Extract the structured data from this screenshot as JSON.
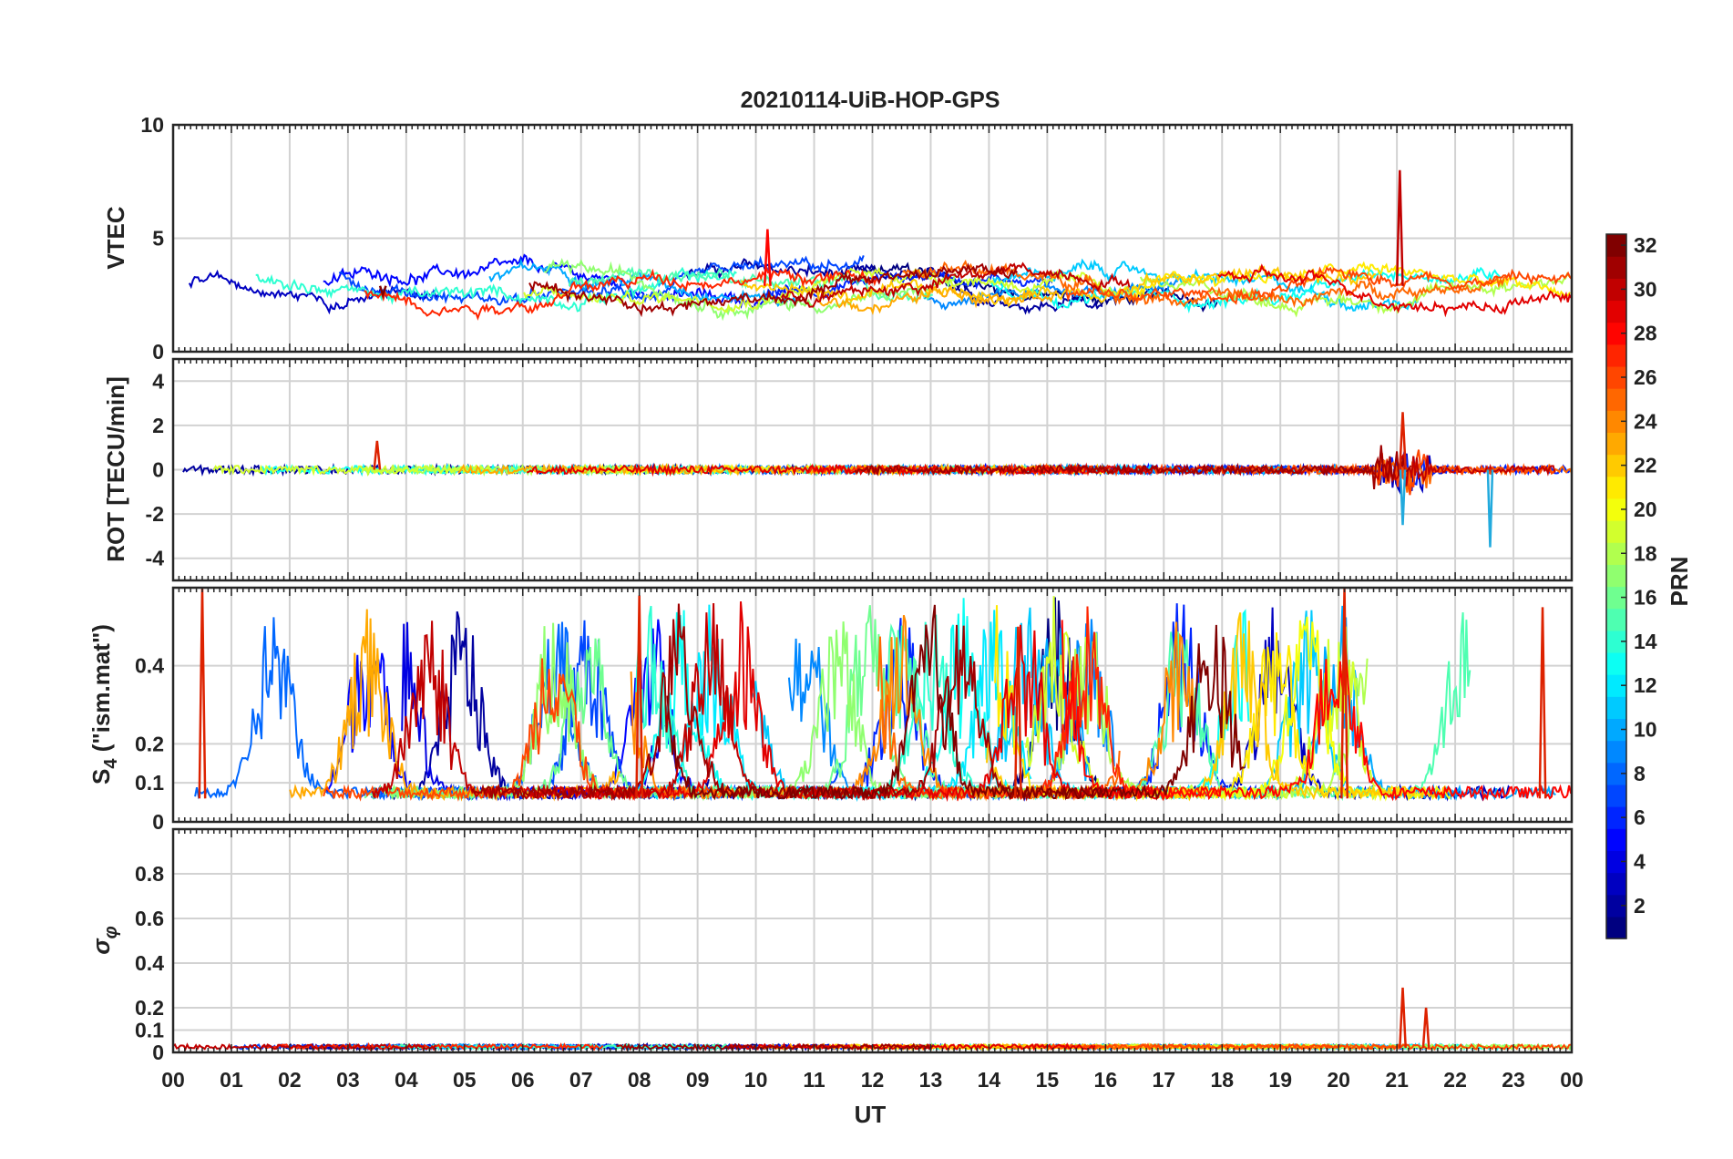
{
  "chart_data": {
    "type": "line",
    "title": "20210114-UiB-HOP-GPS",
    "xlabel": "UT",
    "x_range_hours": [
      0,
      24
    ],
    "x_tick_labels": [
      "00",
      "01",
      "02",
      "03",
      "04",
      "05",
      "06",
      "07",
      "08",
      "09",
      "10",
      "11",
      "12",
      "13",
      "14",
      "15",
      "16",
      "17",
      "18",
      "19",
      "20",
      "21",
      "22",
      "23",
      "00"
    ],
    "grid": true,
    "colormap": "jet",
    "colorbar": {
      "label": "PRN",
      "range": [
        1,
        32
      ],
      "ticks": [
        "2",
        "4",
        "6",
        "8",
        "10",
        "12",
        "14",
        "16",
        "18",
        "20",
        "22",
        "24",
        "26",
        "28",
        "30",
        "32"
      ],
      "position": "right"
    },
    "panels": [
      {
        "id": "vtec",
        "ylabel": "VTEC",
        "ylim": [
          0,
          10
        ],
        "ytick_labels": [
          "0",
          "5",
          "10"
        ],
        "yticks": [
          0,
          5,
          10
        ],
        "approx_profile": {
          "baseline": 2.9,
          "spread": 1.1,
          "features": [
            {
              "ut": 21.05,
              "prn": 30,
              "peak": 8.0
            },
            {
              "ut": 10.2,
              "prn": 28,
              "peak": 5.4
            },
            {
              "ut": 3.6,
              "prn": 32,
              "value": 2.5
            }
          ]
        }
      },
      {
        "id": "rot",
        "ylabel": "ROT [TECU/min]",
        "ylim": [
          -5,
          5
        ],
        "ytick_labels": [
          "-4",
          "-2",
          "0",
          "2",
          "4"
        ],
        "yticks": [
          -4,
          -2,
          0,
          2,
          4
        ],
        "approx_profile": {
          "baseline": 0.0,
          "noise": 0.15,
          "features": [
            {
              "ut": 21.1,
              "peak": 2.6,
              "trough": -2.5
            },
            {
              "ut": 22.6,
              "trough": -3.5
            },
            {
              "ut": 3.5,
              "peak": 1.3
            }
          ]
        }
      },
      {
        "id": "s4",
        "ylabel": "S4 (\"ism.mat\")",
        "ylabel_main": "S",
        "ylabel_sub": "4",
        "ylabel_rest": " (\"ism.mat\")",
        "ylim": [
          0,
          0.6
        ],
        "ytick_labels": [
          "0",
          "0.1",
          "0.2",
          "0.4"
        ],
        "yticks": [
          0,
          0.1,
          0.2,
          0.4
        ],
        "approx_profile": {
          "baseline": 0.06,
          "bursts_max": 0.6,
          "features": [
            {
              "ut": 0.5,
              "peak": 0.6
            },
            {
              "ut": 8.0,
              "peak": 0.58
            },
            {
              "ut": 20.1,
              "peak": 0.6
            },
            {
              "ut": 14.5,
              "peak": 0.5
            },
            {
              "ut": 23.5,
              "peak": 0.55
            }
          ]
        }
      },
      {
        "id": "sigma_phi",
        "ylabel": "σφ",
        "ylabel_main": "σ",
        "ylabel_sub": "φ",
        "ylim": [
          0,
          1
        ],
        "ytick_labels": [
          "0",
          "0.1",
          "0.2",
          "0.4",
          "0.6",
          "0.8"
        ],
        "yticks": [
          0,
          0.1,
          0.2,
          0.4,
          0.6,
          0.8
        ],
        "approx_profile": {
          "baseline": 0.02,
          "features": [
            {
              "ut": 21.1,
              "peak": 0.29
            },
            {
              "ut": 21.5,
              "peak": 0.2
            }
          ]
        }
      }
    ]
  }
}
